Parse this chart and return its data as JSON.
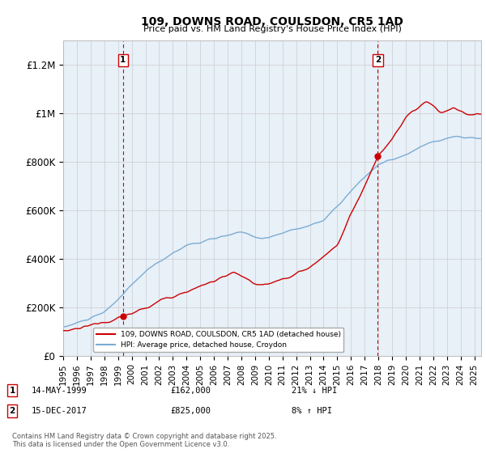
{
  "title": "109, DOWNS ROAD, COULSDON, CR5 1AD",
  "subtitle": "Price paid vs. HM Land Registry's House Price Index (HPI)",
  "ylabel_ticks": [
    "£0",
    "£200K",
    "£400K",
    "£600K",
    "£800K",
    "£1M",
    "£1.2M"
  ],
  "ytick_values": [
    0,
    200000,
    400000,
    600000,
    800000,
    1000000,
    1200000
  ],
  "ylim": [
    0,
    1300000
  ],
  "xlim_start": 1995.0,
  "xlim_end": 2025.5,
  "sale1_date": 1999.37,
  "sale1_price": 162000,
  "sale1_label": "1",
  "sale1_text": "14-MAY-1999",
  "sale1_price_text": "£162,000",
  "sale1_hpi_text": "21% ↓ HPI",
  "sale2_date": 2017.96,
  "sale2_price": 825000,
  "sale2_label": "2",
  "sale2_text": "15-DEC-2017",
  "sale2_price_text": "£825,000",
  "sale2_hpi_text": "8% ↑ HPI",
  "line_color_property": "#cc0000",
  "line_color_hpi": "#7aadd4",
  "vline_color": "#cc0000",
  "grid_color": "#cccccc",
  "plot_bg_color": "#e8f0f8",
  "background_color": "#ffffff",
  "legend_label_property": "109, DOWNS ROAD, COULSDON, CR5 1AD (detached house)",
  "legend_label_hpi": "HPI: Average price, detached house, Croydon",
  "footer_text": "Contains HM Land Registry data © Crown copyright and database right 2025.\nThis data is licensed under the Open Government Licence v3.0.",
  "xticks": [
    1995,
    1996,
    1997,
    1998,
    1999,
    2000,
    2001,
    2002,
    2003,
    2004,
    2005,
    2006,
    2007,
    2008,
    2009,
    2010,
    2011,
    2012,
    2013,
    2014,
    2015,
    2016,
    2017,
    2018,
    2019,
    2020,
    2021,
    2022,
    2023,
    2024,
    2025
  ]
}
